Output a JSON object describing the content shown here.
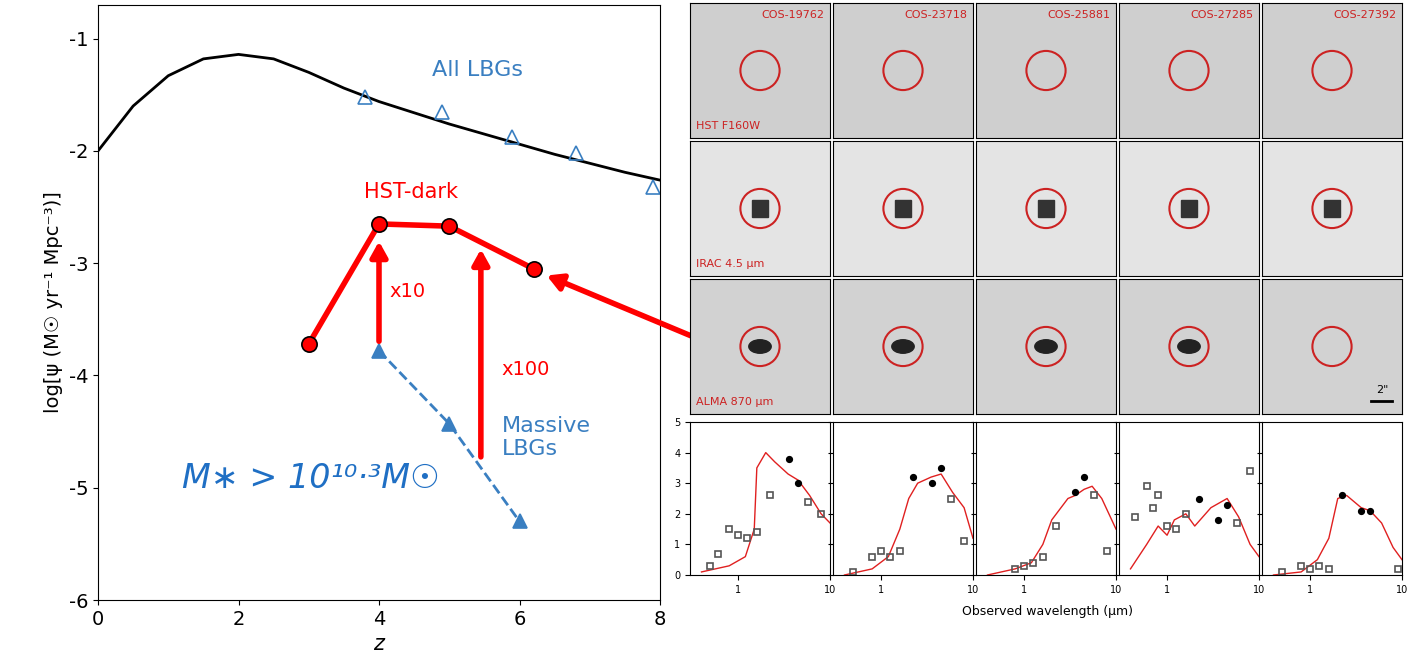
{
  "chart_data": [
    {
      "type": "line",
      "x_label": "z",
      "y_label": "log[ψ (M☉ yr⁻¹ Mpc⁻³)]",
      "xlim": [
        0,
        8
      ],
      "xticks": [
        0,
        2,
        4,
        6,
        8
      ],
      "ylim": [
        -6,
        -0.7
      ],
      "yticks": [
        -6,
        -5,
        -4,
        -3,
        -2,
        -1
      ],
      "annotations": [
        "All LBGs",
        "HST-dark",
        "x10",
        "x100",
        "Massive\nLBGs",
        "M∗ > 10¹⁰·³M☉"
      ],
      "series": [
        {
          "type": "line",
          "color": "#000000",
          "line_style": "solid",
          "marker": "none",
          "x": [
            0,
            0.5,
            1,
            1.5,
            2,
            2.5,
            3,
            3.5,
            4,
            4.5,
            5,
            5.5,
            6,
            6.5,
            7,
            7.5,
            8
          ],
          "values": [
            -2.0,
            -1.6,
            -1.33,
            -1.18,
            -1.14,
            -1.18,
            -1.3,
            -1.44,
            -1.56,
            -1.66,
            -1.76,
            -1.85,
            -1.94,
            -2.03,
            -2.11,
            -2.19,
            -2.26
          ]
        },
        {
          "type": "scatter",
          "color": "#3a7fc1",
          "marker": "open_triangle",
          "x": [
            3.8,
            4.9,
            5.9,
            6.8,
            7.9
          ],
          "values": [
            -1.52,
            -1.65,
            -1.88,
            -2.02,
            -2.32
          ]
        },
        {
          "type": "line",
          "color": "#3a7fc1",
          "line_style": "dashed",
          "marker": "triangle",
          "x": [
            4,
            5,
            6
          ],
          "values": [
            -3.78,
            -4.43,
            -5.3
          ]
        },
        {
          "type": "line",
          "color": "#ff0000",
          "line_style": "solid",
          "marker": "circle",
          "x": [
            3,
            4,
            5,
            6.2
          ],
          "values": [
            -3.72,
            -2.65,
            -2.67,
            -3.05
          ]
        }
      ]
    },
    {
      "type": "scatter",
      "log": "x",
      "xlim": [
        0.3,
        10
      ],
      "xticks": [
        1,
        10
      ],
      "ylim": [
        0,
        5
      ],
      "yticks": [
        0,
        1,
        2,
        3,
        4,
        5
      ],
      "series": [
        {
          "type": "line",
          "color": "#e02020",
          "line_style": "solid",
          "marker": "none",
          "x": [
            0.4,
            0.8,
            1.2,
            1.5,
            1.6,
            2.0,
            2.5,
            3.5,
            4.5,
            6,
            8,
            10
          ],
          "values": [
            0.1,
            0.3,
            0.6,
            1.5,
            3.5,
            4.0,
            3.7,
            3.3,
            3.1,
            2.6,
            2.0,
            1.7
          ]
        },
        {
          "type": "scatter",
          "color": "#000000",
          "marker": "circle",
          "x": [
            3.6,
            4.5
          ],
          "values": [
            3.8,
            3.0
          ]
        },
        {
          "type": "scatter",
          "color": "#555555",
          "marker": "open_square",
          "x": [
            0.5,
            0.6,
            0.8,
            1.0,
            1.25,
            1.6,
            2.2,
            5.8,
            8
          ],
          "values": [
            0.3,
            0.7,
            1.5,
            1.3,
            1.2,
            1.4,
            2.6,
            2.4,
            2.0
          ]
        }
      ]
    },
    {
      "type": "scatter",
      "log": "x",
      "xlim": [
        0.3,
        10
      ],
      "xticks": [
        1,
        10
      ],
      "ylim": [
        0,
        5
      ],
      "yticks": [
        0,
        1,
        2,
        3,
        4,
        5
      ],
      "tick_labels": "x",
      "series": [
        {
          "type": "line",
          "color": "#e02020",
          "line_style": "solid",
          "marker": "none",
          "x": [
            0.4,
            0.8,
            1.2,
            1.6,
            2.0,
            2.5,
            3.5,
            4.5,
            6,
            8,
            10
          ],
          "values": [
            0,
            0.2,
            0.6,
            1.5,
            2.5,
            3.0,
            3.2,
            3.3,
            2.7,
            2.2,
            1.2
          ]
        },
        {
          "type": "scatter",
          "color": "#000000",
          "marker": "circle",
          "x": [
            2.2,
            3.6,
            4.5
          ],
          "values": [
            3.2,
            3.0,
            3.5
          ]
        },
        {
          "type": "scatter",
          "color": "#555555",
          "marker": "open_square",
          "x": [
            0.5,
            0.8,
            1.0,
            1.25,
            1.6,
            5.8,
            8
          ],
          "values": [
            0.1,
            0.6,
            0.8,
            0.6,
            0.8,
            2.5,
            1.1
          ]
        }
      ]
    },
    {
      "type": "scatter",
      "log": "x",
      "xlim": [
        0.3,
        10
      ],
      "xticks": [
        1,
        10
      ],
      "ylim": [
        0,
        5
      ],
      "yticks": [
        0,
        1,
        2,
        3,
        4,
        5
      ],
      "tick_labels": "x",
      "series": [
        {
          "type": "line",
          "color": "#e02020",
          "line_style": "solid",
          "marker": "none",
          "x": [
            0.4,
            0.8,
            1.2,
            1.6,
            2.0,
            3.0,
            3.6,
            4.5,
            5.5,
            7,
            10
          ],
          "values": [
            0,
            0.2,
            0.4,
            1.0,
            1.8,
            2.5,
            2.6,
            2.8,
            2.9,
            2.5,
            1.5
          ]
        },
        {
          "type": "scatter",
          "color": "#000000",
          "marker": "circle",
          "x": [
            3.6,
            4.5
          ],
          "values": [
            2.7,
            3.2
          ]
        },
        {
          "type": "scatter",
          "color": "#555555",
          "marker": "open_square",
          "x": [
            0.8,
            1.0,
            1.25,
            1.6,
            2.2,
            5.8,
            8
          ],
          "values": [
            0.2,
            0.3,
            0.4,
            0.6,
            1.6,
            2.6,
            0.8
          ]
        }
      ]
    },
    {
      "type": "scatter",
      "log": "x",
      "xlim": [
        0.3,
        10
      ],
      "xticks": [
        1,
        10
      ],
      "ylim": [
        0,
        5
      ],
      "yticks": [
        0,
        1,
        2,
        3,
        4,
        5
      ],
      "tick_labels": "x",
      "series": [
        {
          "type": "line",
          "color": "#e02020",
          "line_style": "solid",
          "marker": "none",
          "x": [
            0.4,
            0.6,
            0.8,
            1.0,
            1.2,
            1.6,
            2.0,
            3.0,
            4.5,
            6,
            8,
            10
          ],
          "values": [
            0.2,
            1.0,
            1.6,
            1.3,
            1.8,
            2.0,
            1.6,
            2.2,
            2.5,
            1.9,
            1.0,
            0.6
          ]
        },
        {
          "type": "scatter",
          "color": "#000000",
          "marker": "circle",
          "x": [
            2.2,
            3.6,
            4.5
          ],
          "values": [
            2.5,
            1.8,
            2.3
          ]
        },
        {
          "type": "scatter",
          "color": "#555555",
          "marker": "open_square",
          "x": [
            0.45,
            0.6,
            0.7,
            0.8,
            1.0,
            1.25,
            1.6,
            5.8,
            8
          ],
          "values": [
            1.9,
            2.9,
            2.2,
            2.6,
            1.6,
            1.5,
            2.0,
            1.7,
            3.4
          ]
        }
      ]
    },
    {
      "type": "scatter",
      "log": "x",
      "xlim": [
        0.3,
        10
      ],
      "xticks": [
        1,
        10
      ],
      "ylim": [
        0,
        5
      ],
      "yticks": [
        0,
        1,
        2,
        3,
        4,
        5
      ],
      "tick_labels": "x",
      "series": [
        {
          "type": "line",
          "color": "#e02020",
          "line_style": "solid",
          "marker": "none",
          "x": [
            0.4,
            0.8,
            1.2,
            1.6,
            2.0,
            2.5,
            3.6,
            4.5,
            6,
            8,
            10
          ],
          "values": [
            0,
            0.1,
            0.5,
            1.2,
            2.5,
            2.6,
            2.2,
            2.1,
            1.7,
            0.9,
            0.5
          ]
        },
        {
          "type": "scatter",
          "color": "#000000",
          "marker": "circle",
          "x": [
            2.2,
            3.6,
            4.5
          ],
          "values": [
            2.6,
            2.1,
            2.1
          ]
        },
        {
          "type": "scatter",
          "color": "#555555",
          "marker": "open_square",
          "x": [
            0.5,
            0.8,
            1.0,
            1.25,
            1.6,
            9
          ],
          "values": [
            0.1,
            0.3,
            0.2,
            0.3,
            0.2,
            0.2
          ]
        }
      ]
    }
  ],
  "cutouts": {
    "sources": [
      "COS-19762",
      "COS-23718",
      "COS-25881",
      "COS-27285",
      "COS-27392"
    ],
    "bands": [
      "HST F160W",
      "IRAC 4.5 μm",
      "ALMA 870 μm"
    ],
    "scale_bar": "2\"",
    "sed_x_label": "Observed wavelength (μm)"
  }
}
